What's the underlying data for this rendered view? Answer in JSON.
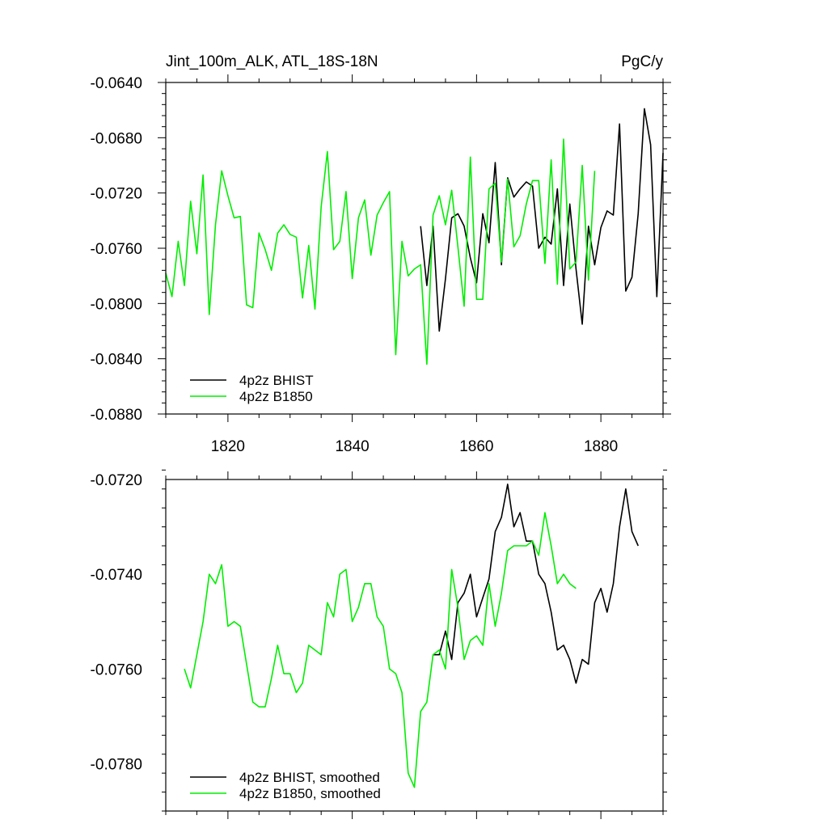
{
  "chart_data": [
    {
      "type": "line",
      "title": "Jint_100m_ALK, ATL_18S-18N",
      "units": "PgC/y",
      "xlabel": "",
      "ylabel": "",
      "xlim": [
        1810,
        1890
      ],
      "ylim": [
        -0.088,
        -0.064
      ],
      "x_ticks": [
        1820,
        1840,
        1860,
        1880
      ],
      "x_tick_labels": [
        "1820",
        "1840",
        "1860",
        "1880"
      ],
      "y_ticks": [
        -0.064,
        -0.068,
        -0.072,
        -0.076,
        -0.08,
        -0.084,
        -0.088
      ],
      "y_tick_labels": [
        "-0.0640",
        "-0.0680",
        "-0.0720",
        "-0.0760",
        "-0.0800",
        "-0.0840",
        "-0.0880"
      ],
      "grid": false,
      "legend_position": "bottom-left",
      "series": [
        {
          "name": "4p2z BHIST",
          "color": "#000000",
          "x": [
            1851,
            1852,
            1853,
            1854,
            1855,
            1856,
            1857,
            1858,
            1859,
            1860,
            1861,
            1862,
            1863,
            1864,
            1865,
            1866,
            1867,
            1868,
            1869,
            1870,
            1871,
            1872,
            1873,
            1874,
            1875,
            1876,
            1877,
            1878,
            1879,
            1880,
            1881,
            1882,
            1883,
            1884,
            1885,
            1886,
            1887,
            1888,
            1889,
            1890
          ],
          "values": [
            -0.0744,
            -0.0787,
            -0.0744,
            -0.082,
            -0.0782,
            -0.0738,
            -0.0735,
            -0.0744,
            -0.0767,
            -0.0785,
            -0.0735,
            -0.0756,
            -0.0698,
            -0.0772,
            -0.0709,
            -0.0723,
            -0.0717,
            -0.0712,
            -0.0715,
            -0.076,
            -0.0752,
            -0.0757,
            -0.0717,
            -0.0787,
            -0.0728,
            -0.0775,
            -0.0815,
            -0.0744,
            -0.0772,
            -0.0745,
            -0.0733,
            -0.0736,
            -0.067,
            -0.0791,
            -0.0781,
            -0.0735,
            -0.0659,
            -0.0685,
            -0.0795,
            -0.0691
          ]
        },
        {
          "name": "4p2z B1850",
          "color": "#00ee00",
          "x": [
            1810,
            1811,
            1812,
            1813,
            1814,
            1815,
            1816,
            1817,
            1818,
            1819,
            1820,
            1821,
            1822,
            1823,
            1824,
            1825,
            1826,
            1827,
            1828,
            1829,
            1830,
            1831,
            1832,
            1833,
            1834,
            1835,
            1836,
            1837,
            1838,
            1839,
            1840,
            1841,
            1842,
            1843,
            1844,
            1845,
            1846,
            1847,
            1848,
            1849,
            1850,
            1851,
            1852,
            1853,
            1854,
            1855,
            1856,
            1857,
            1858,
            1859,
            1860,
            1861,
            1862,
            1863,
            1864,
            1865,
            1866,
            1867,
            1868,
            1869,
            1870,
            1871,
            1872,
            1873,
            1874,
            1875,
            1876,
            1877,
            1878,
            1879,
            1880
          ],
          "values": [
            -0.0778,
            -0.0795,
            -0.0755,
            -0.0787,
            -0.0726,
            -0.0764,
            -0.0707,
            -0.0808,
            -0.0743,
            -0.0704,
            -0.0722,
            -0.0738,
            -0.0737,
            -0.0801,
            -0.0803,
            -0.0749,
            -0.0761,
            -0.0776,
            -0.0749,
            -0.0743,
            -0.075,
            -0.0752,
            -0.0796,
            -0.0758,
            -0.0804,
            -0.073,
            -0.069,
            -0.0761,
            -0.0755,
            -0.0719,
            -0.0782,
            -0.0738,
            -0.0725,
            -0.0765,
            -0.0736,
            -0.0727,
            -0.0719,
            -0.0837,
            -0.0755,
            -0.078,
            -0.0775,
            -0.0772,
            -0.0844,
            -0.0736,
            -0.0722,
            -0.0743,
            -0.0718,
            -0.0759,
            -0.0802,
            -0.0694,
            -0.0797,
            -0.0797,
            -0.0717,
            -0.0713,
            -0.077,
            -0.071,
            -0.0759,
            -0.0751,
            -0.0728,
            -0.0711,
            -0.0711,
            -0.0771,
            -0.0696,
            -0.0786,
            -0.0681,
            -0.0775,
            -0.077,
            -0.07,
            -0.0783,
            -0.0704,
            null
          ]
        }
      ]
    },
    {
      "type": "line",
      "title": "",
      "xlabel": "",
      "ylabel": "",
      "xlim": [
        1810,
        1890
      ],
      "ylim": [
        -0.079,
        -0.072
      ],
      "x_ticks": [
        1820,
        1840,
        1860,
        1880
      ],
      "y_ticks": [
        -0.072,
        -0.074,
        -0.076,
        -0.078
      ],
      "y_tick_labels": [
        "-0.0720",
        "-0.0740",
        "-0.0760",
        "-0.0780"
      ],
      "grid": false,
      "legend_position": "bottom-left",
      "series": [
        {
          "name": "4p2z BHIST, smoothed",
          "color": "#000000",
          "x": [
            1853,
            1854,
            1855,
            1856,
            1857,
            1858,
            1859,
            1860,
            1861,
            1862,
            1863,
            1864,
            1865,
            1866,
            1867,
            1868,
            1869,
            1870,
            1871,
            1872,
            1873,
            1874,
            1875,
            1876,
            1877,
            1878,
            1879,
            1880,
            1881,
            1882,
            1883,
            1884,
            1885,
            1886,
            1887
          ],
          "values": [
            -0.0757,
            -0.0757,
            -0.0752,
            -0.0758,
            -0.0746,
            -0.0744,
            -0.074,
            -0.0749,
            -0.0745,
            -0.0741,
            -0.0731,
            -0.0728,
            -0.0721,
            -0.073,
            -0.0727,
            -0.0733,
            -0.0733,
            -0.074,
            -0.0742,
            -0.0748,
            -0.0756,
            -0.0755,
            -0.0758,
            -0.0763,
            -0.0758,
            -0.0759,
            -0.0746,
            -0.0743,
            -0.0748,
            -0.0742,
            -0.073,
            -0.0722,
            -0.0731,
            -0.0734,
            null
          ]
        },
        {
          "name": "4p2z B1850, smoothed",
          "color": "#00ee00",
          "x": [
            1813,
            1814,
            1815,
            1816,
            1817,
            1818,
            1819,
            1820,
            1821,
            1822,
            1823,
            1824,
            1825,
            1826,
            1827,
            1828,
            1829,
            1830,
            1831,
            1832,
            1833,
            1834,
            1835,
            1836,
            1837,
            1838,
            1839,
            1840,
            1841,
            1842,
            1843,
            1844,
            1845,
            1846,
            1847,
            1848,
            1849,
            1850,
            1851,
            1852,
            1853,
            1854,
            1855,
            1856,
            1857,
            1858,
            1859,
            1860,
            1861,
            1862,
            1863,
            1864,
            1865,
            1866,
            1867,
            1868,
            1869,
            1870,
            1871,
            1872,
            1873,
            1874,
            1875,
            1876,
            1877
          ],
          "values": [
            -0.076,
            -0.0764,
            -0.0757,
            -0.075,
            -0.074,
            -0.0742,
            -0.0738,
            -0.0751,
            -0.075,
            -0.0751,
            -0.0759,
            -0.0767,
            -0.0768,
            -0.0768,
            -0.0762,
            -0.0755,
            -0.0761,
            -0.0761,
            -0.0765,
            -0.0763,
            -0.0755,
            -0.0756,
            -0.0757,
            -0.0746,
            -0.0749,
            -0.074,
            -0.0739,
            -0.075,
            -0.0747,
            -0.0742,
            -0.0742,
            -0.0749,
            -0.0751,
            -0.076,
            -0.0761,
            -0.0765,
            -0.0782,
            -0.0785,
            -0.0769,
            -0.0767,
            -0.0757,
            -0.0756,
            -0.076,
            -0.0739,
            -0.0747,
            -0.0758,
            -0.0754,
            -0.0753,
            -0.0755,
            -0.0742,
            -0.0751,
            -0.0744,
            -0.0735,
            -0.0734,
            -0.0734,
            -0.0734,
            -0.0733,
            -0.0736,
            -0.0727,
            -0.0734,
            -0.0742,
            -0.074,
            -0.0742,
            -0.0743,
            null
          ]
        }
      ]
    }
  ]
}
